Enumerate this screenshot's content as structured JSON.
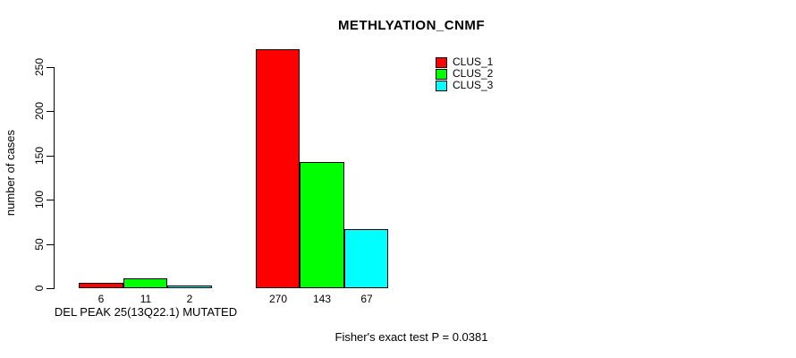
{
  "footer": {
    "stat_text": "Fisher's exact test P = 0.0381"
  },
  "chart_data": {
    "type": "bar",
    "title": "METHLYATION_CNMF",
    "xlabel": "",
    "ylabel": "number of cases",
    "ylim": [
      0,
      270
    ],
    "yticks": [
      0,
      50,
      100,
      150,
      200,
      250
    ],
    "grid": false,
    "legend_position": "top-right-inside",
    "bar_value_labels": true,
    "categories": [
      "DEL PEAK 25(13Q22.1) MUTATED",
      ""
    ],
    "series": [
      {
        "name": "CLUS_1",
        "color": "#ff0000",
        "values": [
          6,
          270
        ]
      },
      {
        "name": "CLUS_2",
        "color": "#00ff00",
        "values": [
          11,
          143
        ]
      },
      {
        "name": "CLUS_3",
        "color": "#00ffff",
        "values": [
          2,
          67
        ]
      }
    ]
  }
}
